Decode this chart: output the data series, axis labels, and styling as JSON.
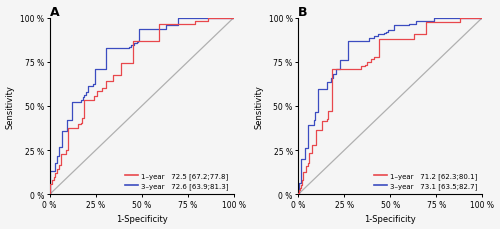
{
  "panel_A_title": "A",
  "panel_B_title": "B",
  "xlabel": "1-Specificity",
  "ylabel": "Sensitivity",
  "xtick_labels": [
    "0 %",
    "25 %",
    "50 %",
    "75 %",
    "100 %"
  ],
  "ytick_labels": [
    "0 %",
    "25 %",
    "50 %",
    "75 %",
    "100 %"
  ],
  "xtick_vals": [
    0,
    0.25,
    0.5,
    0.75,
    1.0
  ],
  "ytick_vals": [
    0,
    0.25,
    0.5,
    0.75,
    1.0
  ],
  "color_1year": "#e8474c",
  "color_3year": "#3b4cc0",
  "color_diagonal": "#b0b0b0",
  "legend_A_1year": "1–year   72.5 [67.2;77.8]",
  "legend_A_3year": "3–year   72.6 [63.9;81.3]",
  "legend_B_1year": "1–year   71.2 [62.3;80.1]",
  "legend_B_3year": "3–year   73.1 [63.5;82.7]",
  "background_color": "#f5f5f5",
  "roc_A_1year_fpr": [
    0,
    0.01,
    0.02,
    0.03,
    0.04,
    0.05,
    0.06,
    0.08,
    0.1,
    0.12,
    0.14,
    0.17,
    0.2,
    0.23,
    0.26,
    0.3,
    0.33,
    0.37,
    0.4,
    0.43,
    0.47,
    0.5,
    0.55,
    0.6,
    0.65,
    0.7,
    0.75,
    0.8,
    0.85,
    0.9,
    0.95,
    1.0
  ],
  "roc_A_1year_tpr": [
    0,
    0.04,
    0.08,
    0.1,
    0.12,
    0.14,
    0.16,
    0.2,
    0.25,
    0.3,
    0.35,
    0.4,
    0.46,
    0.52,
    0.56,
    0.6,
    0.63,
    0.66,
    0.69,
    0.72,
    0.76,
    0.8,
    0.84,
    0.87,
    0.9,
    0.93,
    0.95,
    0.97,
    0.98,
    0.99,
    0.995,
    1.0
  ],
  "roc_A_3year_fpr": [
    0,
    0.01,
    0.02,
    0.03,
    0.04,
    0.05,
    0.07,
    0.09,
    0.11,
    0.14,
    0.17,
    0.2,
    0.23,
    0.27,
    0.3,
    0.34,
    0.37,
    0.41,
    0.45,
    0.49,
    0.53,
    0.57,
    0.62,
    0.67,
    0.72,
    0.77,
    0.82,
    0.87,
    0.92,
    0.96,
    1.0
  ],
  "roc_A_3year_tpr": [
    0,
    0.05,
    0.1,
    0.15,
    0.18,
    0.22,
    0.28,
    0.34,
    0.4,
    0.46,
    0.52,
    0.57,
    0.61,
    0.65,
    0.7,
    0.74,
    0.78,
    0.81,
    0.84,
    0.87,
    0.89,
    0.91,
    0.93,
    0.95,
    0.97,
    0.98,
    0.99,
    0.995,
    0.998,
    0.999,
    1.0
  ],
  "roc_B_1year_fpr": [
    0,
    0.02,
    0.04,
    0.06,
    0.08,
    0.1,
    0.12,
    0.15,
    0.18,
    0.21,
    0.24,
    0.27,
    0.3,
    0.34,
    0.38,
    0.42,
    0.46,
    0.5,
    0.55,
    0.6,
    0.65,
    0.7,
    0.75,
    0.8,
    0.85,
    0.9,
    0.95,
    1.0
  ],
  "roc_B_1year_tpr": [
    0,
    0.06,
    0.12,
    0.18,
    0.24,
    0.28,
    0.34,
    0.4,
    0.46,
    0.52,
    0.58,
    0.63,
    0.67,
    0.71,
    0.74,
    0.77,
    0.79,
    0.82,
    0.85,
    0.87,
    0.89,
    0.91,
    0.93,
    0.95,
    0.97,
    0.98,
    0.99,
    1.0
  ],
  "roc_B_3year_fpr": [
    0,
    0.01,
    0.02,
    0.03,
    0.05,
    0.07,
    0.09,
    0.11,
    0.13,
    0.16,
    0.19,
    0.22,
    0.25,
    0.29,
    0.33,
    0.37,
    0.42,
    0.47,
    0.52,
    0.57,
    0.62,
    0.67,
    0.72,
    0.78,
    0.83,
    0.89,
    0.94,
    1.0
  ],
  "roc_B_3year_tpr": [
    0,
    0.05,
    0.1,
    0.18,
    0.26,
    0.34,
    0.42,
    0.48,
    0.54,
    0.6,
    0.66,
    0.7,
    0.74,
    0.78,
    0.82,
    0.86,
    0.89,
    0.91,
    0.93,
    0.95,
    0.96,
    0.97,
    0.98,
    0.99,
    0.995,
    0.998,
    0.999,
    1.0
  ]
}
